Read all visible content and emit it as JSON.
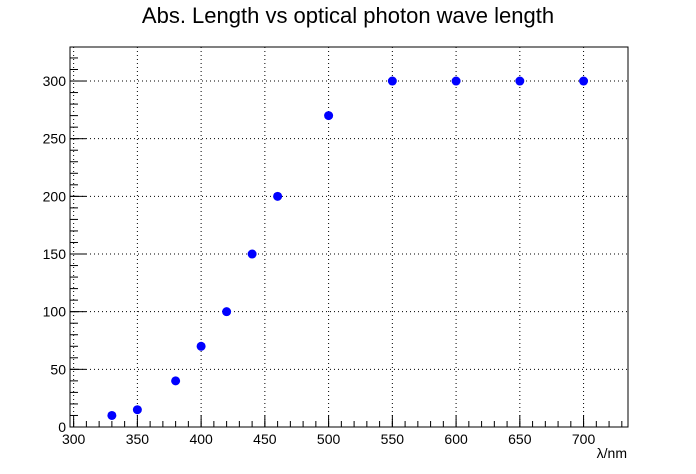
{
  "chart_data": {
    "type": "scatter",
    "title": "Abs. Length vs optical photon wave length",
    "xlabel": "λ/nm",
    "ylabel": "",
    "xlim": [
      297.15,
      734.85
    ],
    "ylim": [
      0,
      329.5
    ],
    "grid": true,
    "x_ticks": [
      300,
      350,
      400,
      450,
      500,
      550,
      600,
      650,
      700
    ],
    "y_ticks": [
      0,
      50,
      100,
      150,
      200,
      250,
      300
    ],
    "x_minor_step": 10,
    "y_minor_step": 10,
    "series": [
      {
        "color": "#0000ff",
        "x": [
          330,
          350,
          380,
          400,
          420,
          440,
          460,
          500,
          550,
          600,
          650,
          700
        ],
        "y": [
          10,
          15,
          40,
          70,
          100,
          150,
          200,
          270,
          300,
          300,
          300,
          300
        ]
      }
    ]
  }
}
